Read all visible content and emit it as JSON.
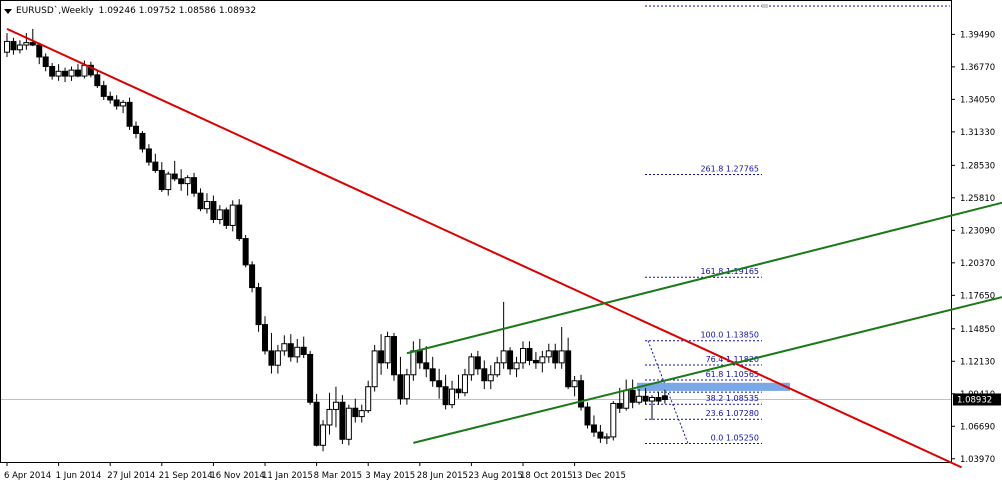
{
  "header": {
    "symbol": "EURUSD`,Weekly",
    "ohlc": "1.09246 1.09752 1.08586 1.08932"
  },
  "colors": {
    "bull_candle": "#ffffff",
    "bear_candle": "#000000",
    "trendline": "#dd0000",
    "channel": "#1a7a1a",
    "fibo": "#1010b0",
    "zone": "#7aa7e6",
    "price_marker_bg": "#000000",
    "price_marker_text": "#ffffff",
    "grid_line": "#c0c0c0"
  },
  "price_axis": {
    "labels": [
      "1.39490",
      "1.36770",
      "1.34050",
      "1.31330",
      "1.28530",
      "1.25810",
      "1.23090",
      "1.20370",
      "1.17650",
      "1.14850",
      "1.12130",
      "1.09410",
      "1.06690",
      "1.03970"
    ],
    "current_price": "1.08932"
  },
  "time_axis": {
    "labels": [
      "6 Apr 2014",
      "1 Jun 2014",
      "27 Jul 2014",
      "21 Sep 2014",
      "16 Nov 2014",
      "11 Jan 2015",
      "8 Mar 2015",
      "3 May 2015",
      "28 Jun 2015",
      "23 Aug 2015",
      "18 Oct 2015",
      "13 Dec 2015"
    ]
  },
  "fibonacci": {
    "levels": [
      {
        "label": "261.8 1.27765",
        "price": 1.27765
      },
      {
        "label": "161.8 1.19165",
        "price": 1.19165
      },
      {
        "label": "100.0 1.13850",
        "price": 1.1385
      },
      {
        "label": "76.4 1.11820",
        "price": 1.1182
      },
      {
        "label": "61.8 1.10565",
        "price": 1.10565
      },
      {
        "label": "50.0 1.09550",
        "price": 1.0955
      },
      {
        "label": "38.2 1.08535",
        "price": 1.08535
      },
      {
        "label": "23.6 1.07280",
        "price": 1.0728
      },
      {
        "label": "0.0 1.05250",
        "price": 1.0525
      }
    ]
  },
  "chart_data": {
    "type": "candlestick",
    "symbol": "EURUSD",
    "timeframe": "Weekly",
    "ylim": [
      1.037,
      1.422
    ],
    "x_tick_labels": [
      "6 Apr 2014",
      "1 Jun 2014",
      "27 Jul 2014",
      "21 Sep 2014",
      "16 Nov 2014",
      "11 Jan 2015",
      "8 Mar 2015",
      "3 May 2015",
      "28 Jun 2015",
      "23 Aug 2015",
      "18 Oct 2015",
      "13 Dec 2015"
    ],
    "y_tick_labels": [
      "1.39490",
      "1.36770",
      "1.34050",
      "1.31330",
      "1.28530",
      "1.25810",
      "1.23090",
      "1.20370",
      "1.17650",
      "1.14850",
      "1.12130",
      "1.09410",
      "1.06690",
      "1.03970"
    ],
    "candles": [
      [
        1.38,
        1.396,
        1.376,
        1.389
      ],
      [
        1.389,
        1.392,
        1.378,
        1.382
      ],
      [
        1.382,
        1.39,
        1.379,
        1.386
      ],
      [
        1.386,
        1.396,
        1.382,
        1.388
      ],
      [
        1.388,
        1.3995,
        1.385,
        1.386
      ],
      [
        1.386,
        1.388,
        1.37,
        1.376
      ],
      [
        1.376,
        1.379,
        1.364,
        1.368
      ],
      [
        1.368,
        1.371,
        1.357,
        1.36
      ],
      [
        1.36,
        1.37,
        1.356,
        1.364
      ],
      [
        1.364,
        1.367,
        1.355,
        1.36
      ],
      [
        1.36,
        1.368,
        1.356,
        1.365
      ],
      [
        1.365,
        1.37,
        1.359,
        1.36
      ],
      [
        1.36,
        1.373,
        1.358,
        1.369
      ],
      [
        1.369,
        1.372,
        1.359,
        1.361
      ],
      [
        1.361,
        1.365,
        1.35,
        1.352
      ],
      [
        1.352,
        1.356,
        1.34,
        1.343
      ],
      [
        1.343,
        1.347,
        1.337,
        1.34
      ],
      [
        1.34,
        1.344,
        1.332,
        1.335
      ],
      [
        1.335,
        1.34,
        1.329,
        1.338
      ],
      [
        1.338,
        1.342,
        1.315,
        1.318
      ],
      [
        1.318,
        1.322,
        1.308,
        1.312
      ],
      [
        1.312,
        1.314,
        1.296,
        1.299
      ],
      [
        1.299,
        1.303,
        1.285,
        1.288
      ],
      [
        1.288,
        1.295,
        1.279,
        1.281
      ],
      [
        1.281,
        1.288,
        1.263,
        1.265
      ],
      [
        1.265,
        1.28,
        1.26,
        1.278
      ],
      [
        1.278,
        1.289,
        1.272,
        1.274
      ],
      [
        1.274,
        1.282,
        1.264,
        1.27
      ],
      [
        1.27,
        1.277,
        1.26,
        1.275
      ],
      [
        1.275,
        1.279,
        1.259,
        1.262
      ],
      [
        1.262,
        1.266,
        1.247,
        1.249
      ],
      [
        1.249,
        1.262,
        1.245,
        1.255
      ],
      [
        1.255,
        1.26,
        1.237,
        1.24
      ],
      [
        1.24,
        1.252,
        1.236,
        1.248
      ],
      [
        1.248,
        1.25,
        1.232,
        1.235
      ],
      [
        1.235,
        1.256,
        1.23,
        1.252
      ],
      [
        1.252,
        1.257,
        1.222,
        1.224
      ],
      [
        1.224,
        1.227,
        1.2,
        1.202
      ],
      [
        1.202,
        1.205,
        1.179,
        1.183
      ],
      [
        1.183,
        1.187,
        1.146,
        1.152
      ],
      [
        1.152,
        1.159,
        1.127,
        1.13
      ],
      [
        1.13,
        1.145,
        1.111,
        1.118
      ],
      [
        1.118,
        1.135,
        1.111,
        1.13
      ],
      [
        1.13,
        1.143,
        1.126,
        1.136
      ],
      [
        1.136,
        1.144,
        1.121,
        1.125
      ],
      [
        1.125,
        1.14,
        1.12,
        1.133
      ],
      [
        1.133,
        1.142,
        1.124,
        1.127
      ],
      [
        1.127,
        1.13,
        1.085,
        1.087
      ],
      [
        1.087,
        1.094,
        1.05,
        1.051
      ],
      [
        1.051,
        1.072,
        1.046,
        1.068
      ],
      [
        1.068,
        1.095,
        1.06,
        1.081
      ],
      [
        1.081,
        1.1,
        1.066,
        1.087
      ],
      [
        1.087,
        1.093,
        1.052,
        1.056
      ],
      [
        1.056,
        1.085,
        1.051,
        1.082
      ],
      [
        1.082,
        1.09,
        1.07,
        1.075
      ],
      [
        1.075,
        1.085,
        1.07,
        1.08
      ],
      [
        1.08,
        1.105,
        1.078,
        1.1
      ],
      [
        1.1,
        1.135,
        1.096,
        1.13
      ],
      [
        1.13,
        1.144,
        1.11,
        1.12
      ],
      [
        1.12,
        1.146,
        1.115,
        1.142
      ],
      [
        1.142,
        1.145,
        1.105,
        1.11
      ],
      [
        1.11,
        1.125,
        1.085,
        1.09
      ],
      [
        1.09,
        1.115,
        1.085,
        1.11
      ],
      [
        1.11,
        1.138,
        1.105,
        1.13
      ],
      [
        1.13,
        1.14,
        1.115,
        1.12
      ],
      [
        1.12,
        1.134,
        1.108,
        1.115
      ],
      [
        1.115,
        1.125,
        1.1,
        1.105
      ],
      [
        1.105,
        1.115,
        1.09,
        1.1
      ],
      [
        1.1,
        1.11,
        1.081,
        1.085
      ],
      [
        1.085,
        1.105,
        1.082,
        1.098
      ],
      [
        1.098,
        1.11,
        1.09,
        1.095
      ],
      [
        1.095,
        1.115,
        1.092,
        1.11
      ],
      [
        1.11,
        1.128,
        1.105,
        1.125
      ],
      [
        1.125,
        1.13,
        1.11,
        1.115
      ],
      [
        1.115,
        1.122,
        1.098,
        1.105
      ],
      [
        1.105,
        1.118,
        1.098,
        1.11
      ],
      [
        1.11,
        1.125,
        1.108,
        1.12
      ],
      [
        1.12,
        1.171,
        1.115,
        1.13
      ],
      [
        1.13,
        1.133,
        1.11,
        1.115
      ],
      [
        1.115,
        1.125,
        1.108,
        1.12
      ],
      [
        1.12,
        1.138,
        1.115,
        1.132
      ],
      [
        1.132,
        1.138,
        1.118,
        1.122
      ],
      [
        1.122,
        1.129,
        1.115,
        1.12
      ],
      [
        1.12,
        1.13,
        1.112,
        1.125
      ],
      [
        1.125,
        1.136,
        1.12,
        1.13
      ],
      [
        1.13,
        1.136,
        1.115,
        1.12
      ],
      [
        1.12,
        1.15,
        1.115,
        1.13
      ],
      [
        1.13,
        1.141,
        1.098,
        1.1
      ],
      [
        1.1,
        1.109,
        1.092,
        1.105
      ],
      [
        1.105,
        1.11,
        1.08,
        1.083
      ],
      [
        1.083,
        1.087,
        1.065,
        1.068
      ],
      [
        1.068,
        1.076,
        1.058,
        1.062
      ],
      [
        1.062,
        1.068,
        1.053,
        1.057
      ],
      [
        1.057,
        1.061,
        1.052,
        1.058
      ],
      [
        1.058,
        1.088,
        1.055,
        1.086
      ],
      [
        1.086,
        1.099,
        1.078,
        1.082
      ],
      [
        1.082,
        1.106,
        1.08,
        1.097
      ],
      [
        1.097,
        1.106,
        1.082,
        1.087
      ],
      [
        1.087,
        1.098,
        1.085,
        1.092
      ],
      [
        1.092,
        1.099,
        1.085,
        1.088
      ],
      [
        1.088,
        1.093,
        1.072,
        1.091
      ],
      [
        1.091,
        1.096,
        1.085,
        1.088
      ],
      [
        1.0924,
        1.0975,
        1.0859,
        1.0893
      ]
    ],
    "trendline": {
      "from": [
        0,
        1.3995
      ],
      "to": [
        148,
        1.0325
      ]
    },
    "channel_upper": {
      "from": [
        62,
        1.128
      ],
      "to": [
        155,
        1.255
      ]
    },
    "channel_lower": {
      "from": [
        63,
        1.053
      ],
      "to": [
        155,
        1.176
      ]
    },
    "zone": {
      "from_index": 104,
      "to_index": 128,
      "price_top": 1.1033,
      "price_bottom": 1.0965
    },
    "grid": false,
    "legend": "none"
  }
}
